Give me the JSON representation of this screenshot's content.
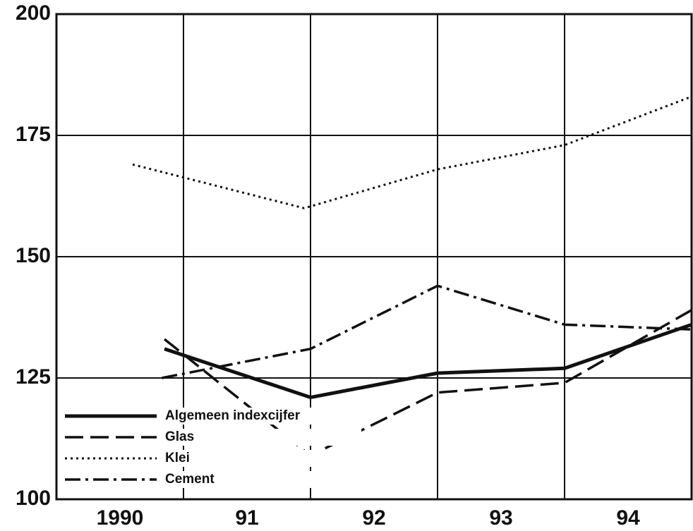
{
  "chart_data": {
    "type": "line",
    "categories": [
      "1990",
      "91",
      "92",
      "93",
      "94"
    ],
    "xlim": [
      1990,
      1995
    ],
    "ylim": [
      100,
      200
    ],
    "yticks": [
      100,
      125,
      150,
      175,
      200
    ],
    "grid": true,
    "legend": "lower-left",
    "series": [
      {
        "name": "Algemeen indexcijfer",
        "color": "#111111",
        "dash": "solid",
        "x": [
          1990.85,
          1992.0,
          1993.0,
          1994.0,
          1995.0
        ],
        "values": [
          131,
          121,
          126,
          127,
          136
        ]
      },
      {
        "name": "Glas",
        "color": "#111111",
        "dash": "dashed",
        "x": [
          1990.85,
          1992.0,
          1993.0,
          1994.0,
          1995.0
        ],
        "values": [
          133,
          109,
          122,
          124,
          139
        ]
      },
      {
        "name": "Klei",
        "color": "#111111",
        "dash": "dotted",
        "x": [
          1990.6,
          1991.95,
          1993.0,
          1994.0,
          1995.0
        ],
        "values": [
          169,
          160,
          168,
          173,
          183
        ]
      },
      {
        "name": "Cement",
        "color": "#111111",
        "dash": "dashdot",
        "x": [
          1990.83,
          1992.0,
          1993.0,
          1994.0,
          1995.0
        ],
        "values": [
          125,
          131,
          144,
          136,
          135
        ]
      }
    ]
  }
}
